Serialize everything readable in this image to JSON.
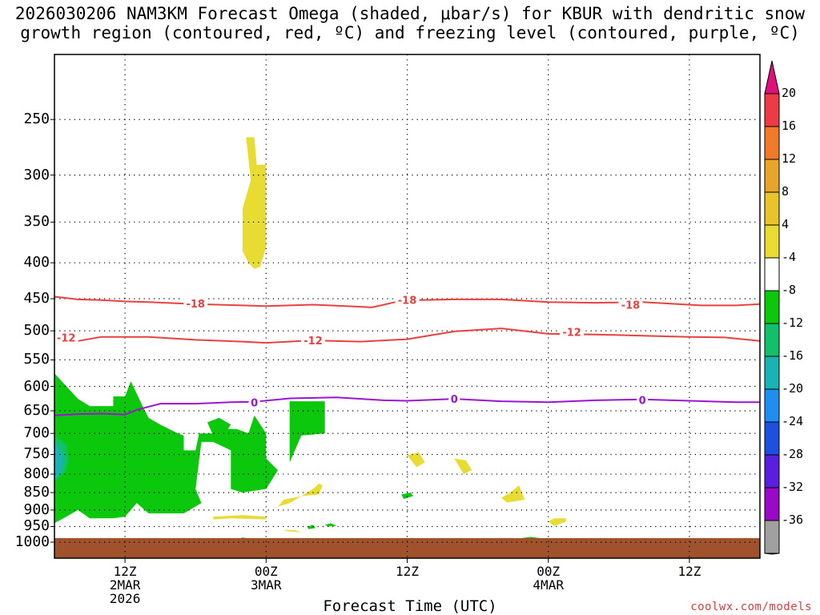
{
  "title": {
    "line1": "2026030206 NAM3KM Forecast Omega (shaded, μbar/s) for KBUR with dendritic snow",
    "line2": "growth region (contoured, red, ºC) and freezing level (contoured, purple, ºC)"
  },
  "x_axis": {
    "title": "Forecast Time (UTC)",
    "ticks": [
      {
        "hour": 6,
        "label": "12Z\n2MAR\n2026"
      },
      {
        "hour": 18,
        "label": "00Z\n3MAR"
      },
      {
        "hour": 30,
        "label": "12Z"
      },
      {
        "hour": 42,
        "label": "00Z\n4MAR"
      },
      {
        "hour": 54,
        "label": "12Z"
      }
    ]
  },
  "credit": "coolwx.com/models",
  "colorbar": {
    "labels": [
      "20",
      "16",
      "12",
      "8",
      "4",
      "-4",
      "-8",
      "-12",
      "-16",
      "-20",
      "-24",
      "-28",
      "-32",
      "-36"
    ],
    "colors": [
      "#ee3a44",
      "#f07a2a",
      "#e8a52a",
      "#e6c42a",
      "#e8dc32",
      "#ffffff",
      "#0cc80c",
      "#12c06a",
      "#18b4b4",
      "#1e8ef0",
      "#1e50e0",
      "#5a1ee0",
      "#9a08c8",
      "#a0a0a0"
    ],
    "top_arrow_color": "#e0107a",
    "bottom_arrow_color": "#000000"
  },
  "chart_data": {
    "type": "heatmap",
    "title": "2026030206 NAM3KM Forecast Omega (shaded, μbar/s) for KBUR with dendritic snow growth region (contoured, red, ºC) and freezing level (contoured, purple, ºC)",
    "xlabel": "Forecast Time (UTC)",
    "ylabel": "",
    "x_units": "hours since 2026-03-02 06Z",
    "xlim": [
      0,
      60
    ],
    "ylim": [
      1020,
      200
    ],
    "y_scale": "log-pressure (hPa)",
    "y_ticks": [
      250,
      300,
      350,
      400,
      450,
      500,
      550,
      600,
      650,
      700,
      750,
      800,
      850,
      900,
      950,
      1000
    ],
    "grid": true,
    "contours": [
      {
        "name": "-18",
        "units": "ºC",
        "color": "#e94040",
        "points": [
          [
            0,
            447
          ],
          [
            2,
            451
          ],
          [
            4,
            452
          ],
          [
            6,
            454
          ],
          [
            8,
            455
          ],
          [
            12,
            458
          ],
          [
            16,
            460
          ],
          [
            18,
            461
          ],
          [
            22,
            459
          ],
          [
            26,
            462
          ],
          [
            27,
            463
          ],
          [
            29,
            455
          ],
          [
            31,
            452
          ],
          [
            34,
            451
          ],
          [
            38,
            451
          ],
          [
            42,
            455
          ],
          [
            46,
            456
          ],
          [
            50,
            455
          ],
          [
            52,
            457
          ],
          [
            55,
            460
          ],
          [
            58,
            460
          ],
          [
            60,
            458
          ]
        ],
        "labels": [
          {
            "x": 12,
            "y": 457
          },
          {
            "x": 30,
            "y": 452
          },
          {
            "x": 49,
            "y": 459
          }
        ]
      },
      {
        "name": "-12",
        "units": "ºC",
        "color": "#e94040",
        "points": [
          [
            0,
            512
          ],
          [
            2,
            517
          ],
          [
            4,
            510
          ],
          [
            8,
            510
          ],
          [
            12,
            515
          ],
          [
            16,
            518
          ],
          [
            18,
            520
          ],
          [
            22,
            516
          ],
          [
            26,
            518
          ],
          [
            30,
            514
          ],
          [
            34,
            501
          ],
          [
            38,
            496
          ],
          [
            42,
            505
          ],
          [
            46,
            506
          ],
          [
            50,
            508
          ],
          [
            54,
            510
          ],
          [
            57,
            511
          ],
          [
            60,
            517
          ]
        ],
        "labels": [
          {
            "x": 1,
            "y": 511
          },
          {
            "x": 22,
            "y": 516
          },
          {
            "x": 44,
            "y": 502
          }
        ]
      },
      {
        "name": "0",
        "units": "ºC",
        "color": "#9c14d2",
        "points": [
          [
            0,
            660
          ],
          [
            2,
            657
          ],
          [
            4,
            656
          ],
          [
            6,
            658
          ],
          [
            7,
            648
          ],
          [
            9,
            635
          ],
          [
            12,
            635
          ],
          [
            15,
            632
          ],
          [
            17,
            631
          ],
          [
            20,
            624
          ],
          [
            24,
            622
          ],
          [
            28,
            628
          ],
          [
            30,
            629
          ],
          [
            34,
            625
          ],
          [
            38,
            630
          ],
          [
            42,
            632
          ],
          [
            46,
            628
          ],
          [
            50,
            626
          ],
          [
            54,
            629
          ],
          [
            58,
            632
          ],
          [
            60,
            632
          ]
        ],
        "labels": [
          {
            "x": 17,
            "y": 632
          },
          {
            "x": 34,
            "y": 625
          },
          {
            "x": 50,
            "y": 627
          }
        ]
      }
    ],
    "omega_regions": [
      {
        "class": "-4 to -8",
        "color": "#0cc80c",
        "points": [
          [
            0,
            575
          ],
          [
            2,
            625
          ],
          [
            3,
            640
          ],
          [
            5,
            640
          ],
          [
            5,
            620
          ],
          [
            6,
            620
          ],
          [
            6.5,
            590
          ],
          [
            7.5,
            640
          ],
          [
            8,
            665
          ],
          [
            9,
            680
          ],
          [
            10.5,
            700
          ],
          [
            11,
            705
          ],
          [
            11,
            740
          ],
          [
            12,
            740
          ],
          [
            12.3,
            700
          ],
          [
            13.5,
            700
          ],
          [
            14,
            690
          ],
          [
            15.5,
            690
          ],
          [
            16.5,
            700
          ],
          [
            17,
            660
          ],
          [
            18,
            700
          ],
          [
            18,
            760
          ],
          [
            19,
            790
          ],
          [
            18,
            840
          ],
          [
            16,
            850
          ],
          [
            15,
            840
          ],
          [
            15,
            740
          ],
          [
            13.5,
            720
          ],
          [
            12.5,
            720
          ],
          [
            12,
            840
          ],
          [
            12.5,
            880
          ],
          [
            11,
            910
          ],
          [
            8,
            910
          ],
          [
            7,
            880
          ],
          [
            6,
            920
          ],
          [
            5,
            925
          ],
          [
            3,
            925
          ],
          [
            2,
            900
          ],
          [
            1,
            920
          ],
          [
            0,
            940
          ]
        ]
      },
      {
        "class": "-8 to -12",
        "color": "#12c06a",
        "points": [
          [
            0,
            705
          ],
          [
            1,
            725
          ],
          [
            1.2,
            760
          ],
          [
            1,
            790
          ],
          [
            0,
            820
          ]
        ]
      },
      {
        "class": "-12 to -16",
        "color": "#18b4b4",
        "points": [
          [
            0,
            720
          ],
          [
            0.6,
            745
          ],
          [
            0.8,
            765
          ],
          [
            0.6,
            795
          ],
          [
            0,
            815
          ]
        ]
      },
      {
        "class": "-4 to -8",
        "color": "#0cc80c",
        "points": [
          [
            20,
            630
          ],
          [
            23,
            630
          ],
          [
            23,
            700
          ],
          [
            21,
            705
          ],
          [
            20,
            770
          ],
          [
            20,
            700
          ]
        ]
      },
      {
        "class": "-4 to -8",
        "color": "#0cc80c",
        "points": [
          [
            13,
            675
          ],
          [
            14,
            665
          ],
          [
            15,
            680
          ],
          [
            14.5,
            700
          ],
          [
            13.5,
            705
          ]
        ]
      },
      {
        "class": "-4 to -8",
        "color": "#0cc80c",
        "points": [
          [
            29.5,
            855
          ],
          [
            30.3,
            850
          ],
          [
            30.5,
            860
          ],
          [
            29.7,
            868
          ]
        ]
      },
      {
        "class": "-4 to -8",
        "color": "#0cc80c",
        "points": [
          [
            21.5,
            950
          ],
          [
            22,
            945
          ],
          [
            22.2,
            955
          ],
          [
            21.6,
            958
          ]
        ]
      },
      {
        "class": "-4 to -8",
        "color": "#0cc80c",
        "points": [
          [
            23,
            945
          ],
          [
            23.5,
            940
          ],
          [
            24,
            948
          ],
          [
            23.3,
            950
          ]
        ]
      },
      {
        "class": "-4 to -8",
        "color": "#0cc80c",
        "points": [
          [
            15.5,
            990
          ],
          [
            16,
            985
          ],
          [
            17,
            990
          ]
        ]
      },
      {
        "class": "-4 to -8",
        "color": "#0cc80c",
        "points": [
          [
            29.8,
            990
          ],
          [
            30.4,
            986
          ],
          [
            30.8,
            990
          ]
        ]
      },
      {
        "class": "-4 to -8",
        "color": "#0cc80c",
        "points": [
          [
            39.5,
            988
          ],
          [
            40.5,
            983
          ],
          [
            41.5,
            988
          ]
        ]
      },
      {
        "class": "4 to 8",
        "color": "#e8dc32",
        "points": [
          [
            16.5,
            265
          ],
          [
            17,
            265
          ],
          [
            17.2,
            290
          ],
          [
            18,
            290
          ],
          [
            18,
            380
          ],
          [
            17.5,
            405
          ],
          [
            17,
            408
          ],
          [
            16.5,
            400
          ],
          [
            16,
            385
          ],
          [
            16,
            335
          ],
          [
            16.7,
            305
          ],
          [
            16.3,
            265
          ]
        ]
      },
      {
        "class": "4 to 8",
        "color": "#e8dc32",
        "points": [
          [
            19,
            890
          ],
          [
            19.5,
            870
          ],
          [
            21,
            860
          ],
          [
            22,
            840
          ],
          [
            22.5,
            825
          ],
          [
            22.8,
            830
          ],
          [
            22.5,
            855
          ],
          [
            21,
            860
          ],
          [
            20.5,
            870
          ],
          [
            20,
            880
          ]
        ]
      },
      {
        "class": "4 to 8",
        "color": "#e8dc32",
        "points": [
          [
            13.5,
            920
          ],
          [
            16,
            915
          ],
          [
            18,
            920
          ],
          [
            18,
            928
          ],
          [
            15,
            925
          ],
          [
            13.5,
            928
          ]
        ]
      },
      {
        "class": "4 to 8",
        "color": "#e8dc32",
        "points": [
          [
            30,
            752
          ],
          [
            31,
            745
          ],
          [
            31.5,
            770
          ],
          [
            30.8,
            782
          ]
        ]
      },
      {
        "class": "4 to 8",
        "color": "#e8dc32",
        "points": [
          [
            34,
            760
          ],
          [
            35,
            765
          ],
          [
            35.5,
            790
          ],
          [
            34.8,
            800
          ]
        ]
      },
      {
        "class": "4 to 8",
        "color": "#e8dc32",
        "points": [
          [
            38,
            865
          ],
          [
            38.8,
            850
          ],
          [
            39.5,
            830
          ],
          [
            40,
            870
          ],
          [
            38.5,
            878
          ]
        ]
      },
      {
        "class": "4 to 8",
        "color": "#e8dc32",
        "points": [
          [
            42,
            935
          ],
          [
            42.5,
            925
          ],
          [
            43.5,
            925
          ],
          [
            43.5,
            935
          ],
          [
            42.5,
            948
          ]
        ]
      },
      {
        "class": "4 to 8",
        "color": "#e8dc32",
        "points": [
          [
            19.5,
            960
          ],
          [
            20.5,
            962
          ],
          [
            21,
            968
          ],
          [
            19.8,
            965
          ]
        ]
      }
    ],
    "terrain": {
      "color": "#a0522d",
      "surface_pressure": 1000
    }
  }
}
